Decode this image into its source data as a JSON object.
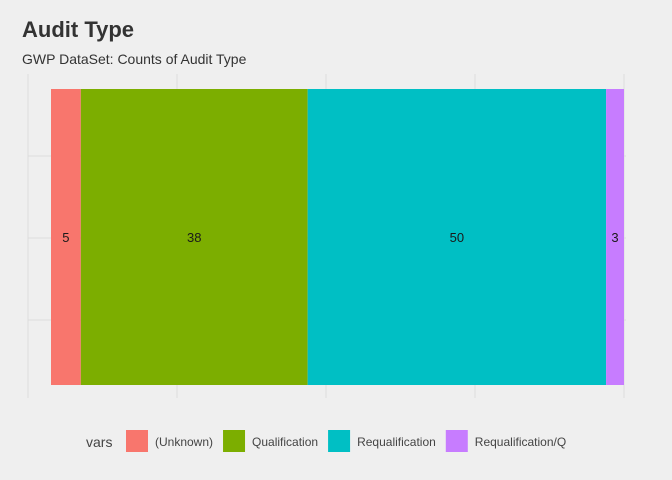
{
  "chart_data": {
    "type": "bar",
    "orientation": "horizontal-stacked",
    "title": "Audit Type",
    "subtitle": "GWP DataSet: Counts of Audit Type",
    "xlabel": "",
    "ylabel": "",
    "legend_title": "vars",
    "legend_position": "bottom",
    "grid": true,
    "x_range": [
      0,
      96
    ],
    "series": [
      {
        "name": "(Unknown)",
        "value": 5,
        "color": "#F8766D"
      },
      {
        "name": "Qualification",
        "value": 38,
        "color": "#7CAE00"
      },
      {
        "name": "Requalification",
        "value": 50,
        "color": "#00BFC4"
      },
      {
        "name": "Requalification/Q",
        "value": 3,
        "color": "#C77CFF"
      }
    ]
  }
}
